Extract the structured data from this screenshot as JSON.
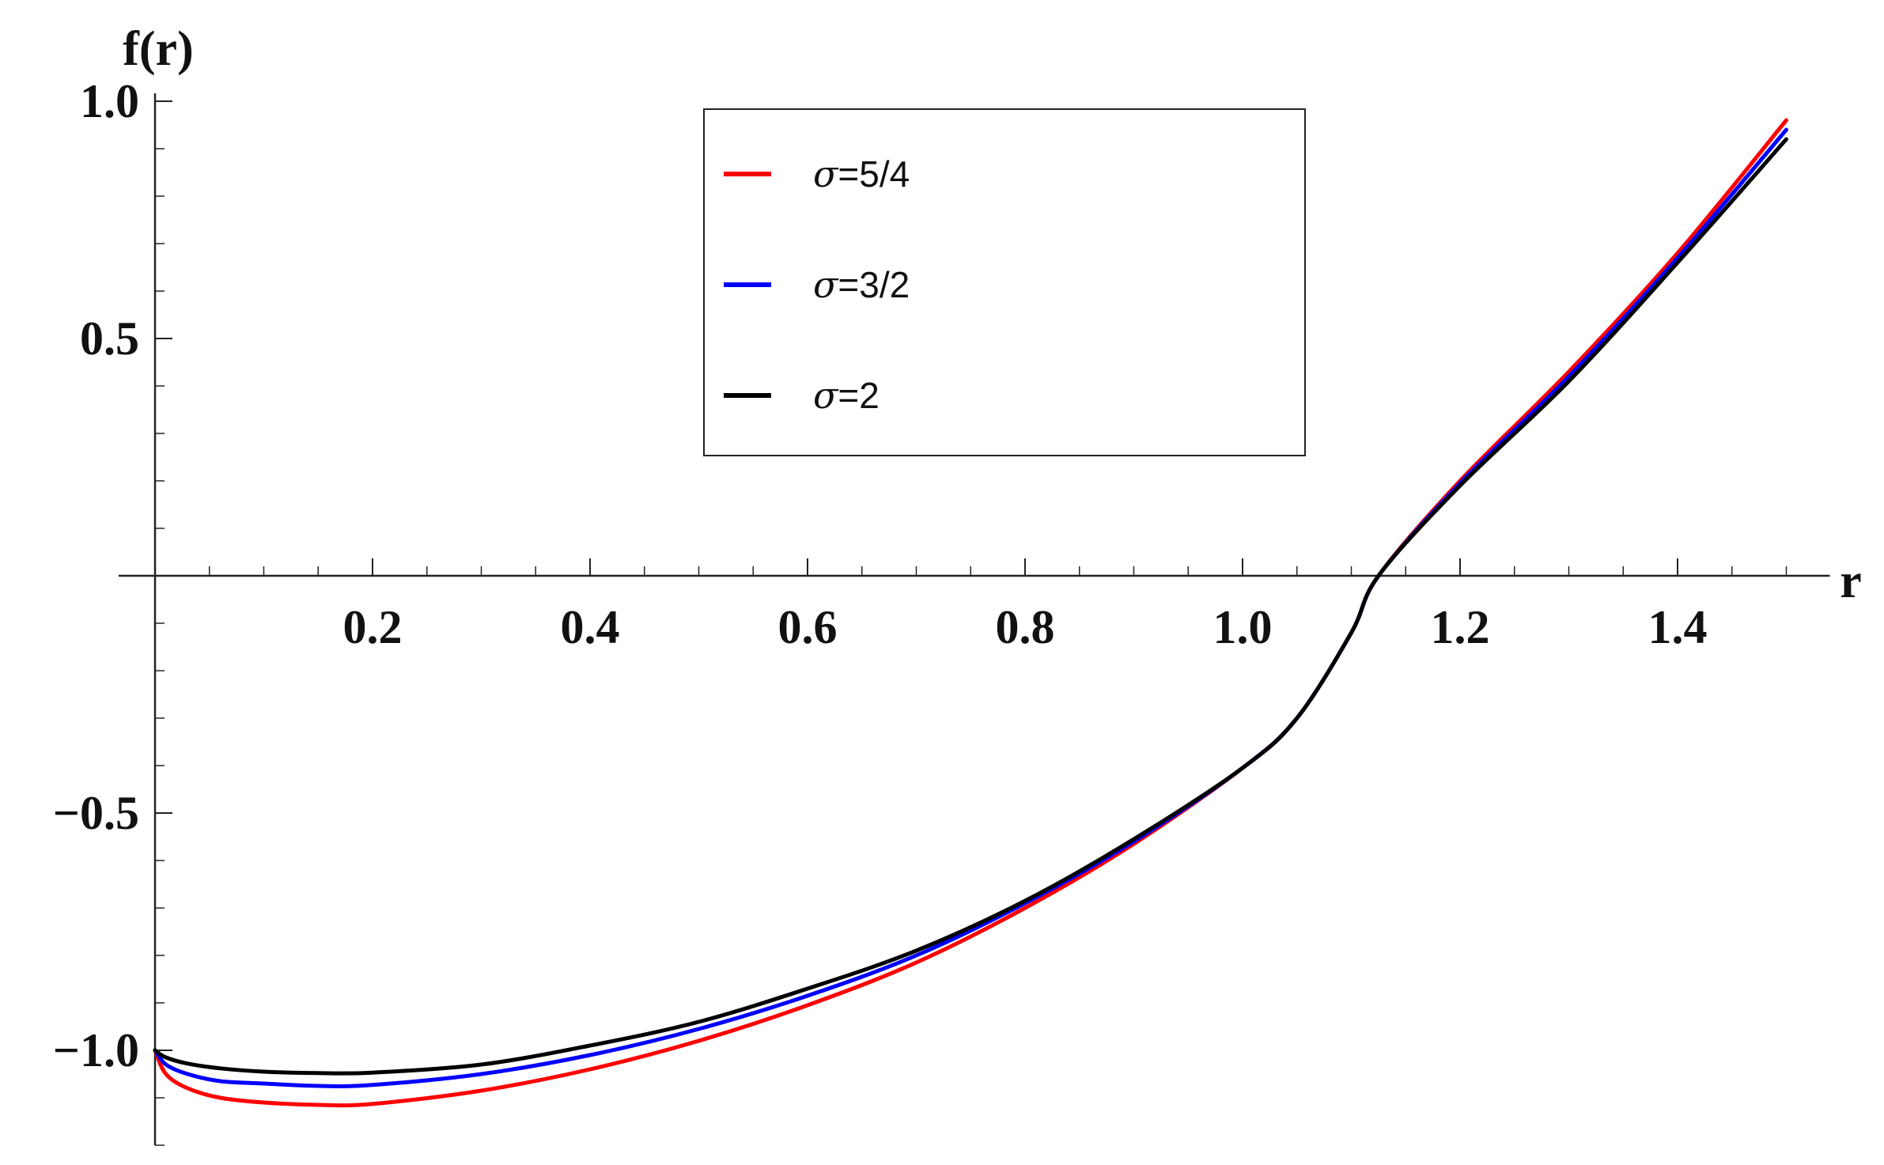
{
  "chart_data": {
    "type": "line",
    "title": "",
    "xlabel": "r",
    "ylabel": "f(r)",
    "xlim": [
      0,
      1.54
    ],
    "ylim": [
      -1.2,
      1.0
    ],
    "xticks": [
      {
        "value": 0.2,
        "label": "0.2"
      },
      {
        "value": 0.4,
        "label": "0.4"
      },
      {
        "value": 0.6,
        "label": "0.6"
      },
      {
        "value": 0.8,
        "label": "0.8"
      },
      {
        "value": 1.0,
        "label": "1.0"
      },
      {
        "value": 1.2,
        "label": "1.2"
      },
      {
        "value": 1.4,
        "label": "1.4"
      }
    ],
    "yticks": [
      {
        "value": -1.0,
        "label": "−1.0"
      },
      {
        "value": -0.5,
        "label": "−0.5"
      },
      {
        "value": 0.5,
        "label": "0.5"
      },
      {
        "value": 1.0,
        "label": "1.0"
      }
    ],
    "grid": false,
    "legend_position": "top-center",
    "series": [
      {
        "name": "σ=5/4",
        "legend_sym": "σ",
        "legend_rest": "=5/4",
        "color": "#ff0000",
        "x": [
          0.0,
          0.01,
          0.03,
          0.06,
          0.1,
          0.15,
          0.2,
          0.3,
          0.4,
          0.5,
          0.6,
          0.7,
          0.8,
          0.9,
          1.0,
          1.05,
          1.1,
          1.125,
          1.2,
          1.3,
          1.4,
          1.5
        ],
        "y": [
          -1.0,
          -1.05,
          -1.08,
          -1.1,
          -1.11,
          -1.115,
          -1.113,
          -1.085,
          -1.04,
          -0.98,
          -0.905,
          -0.815,
          -0.7,
          -0.565,
          -0.405,
          -0.3,
          -0.12,
          0.0,
          0.2,
          0.43,
          0.68,
          0.96
        ]
      },
      {
        "name": "σ=3/2",
        "legend_sym": "σ",
        "legend_rest": "=3/2",
        "color": "#0000ff",
        "x": [
          0.0,
          0.01,
          0.03,
          0.06,
          0.1,
          0.15,
          0.2,
          0.3,
          0.4,
          0.5,
          0.6,
          0.7,
          0.8,
          0.9,
          1.0,
          1.05,
          1.1,
          1.125,
          1.2,
          1.3,
          1.4,
          1.5
        ],
        "y": [
          -1.0,
          -1.03,
          -1.05,
          -1.065,
          -1.07,
          -1.075,
          -1.073,
          -1.05,
          -1.01,
          -0.955,
          -0.885,
          -0.8,
          -0.69,
          -0.56,
          -0.405,
          -0.3,
          -0.12,
          0.0,
          0.195,
          0.42,
          0.67,
          0.94
        ]
      },
      {
        "name": "σ=2",
        "legend_sym": "σ",
        "legend_rest": "=2",
        "color": "#000000",
        "x": [
          0.0,
          0.01,
          0.03,
          0.06,
          0.1,
          0.15,
          0.2,
          0.3,
          0.4,
          0.5,
          0.6,
          0.7,
          0.8,
          0.9,
          1.0,
          1.05,
          1.1,
          1.125,
          1.2,
          1.3,
          1.4,
          1.5
        ],
        "y": [
          -1.0,
          -1.015,
          -1.028,
          -1.038,
          -1.045,
          -1.048,
          -1.047,
          -1.03,
          -0.99,
          -0.94,
          -0.87,
          -0.79,
          -0.685,
          -0.555,
          -0.405,
          -0.3,
          -0.12,
          0.0,
          0.19,
          0.41,
          0.66,
          0.92
        ]
      }
    ]
  }
}
